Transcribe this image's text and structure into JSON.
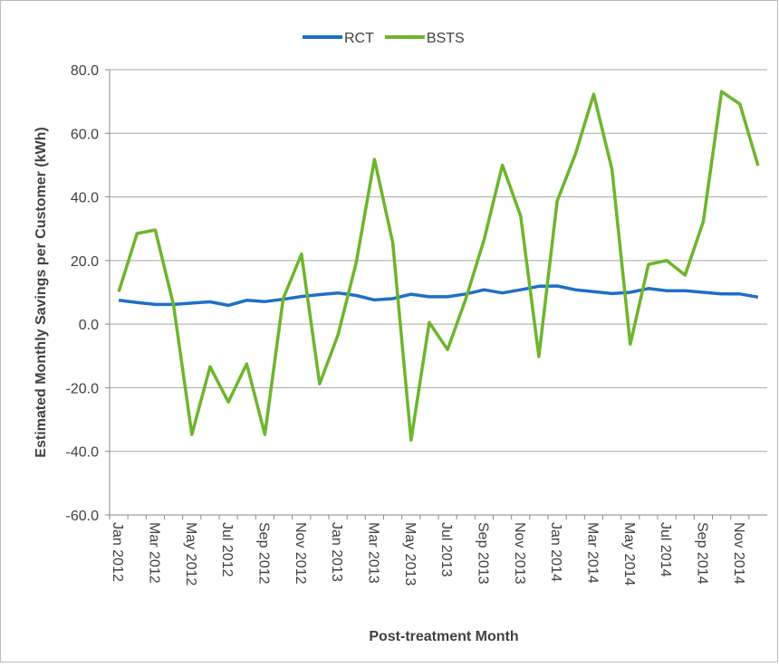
{
  "chart_data": {
    "type": "line",
    "y_label": "Estimated Monthly Savings per Customer (kWh)",
    "x_label": "Post-treatment Month",
    "categories": [
      "Jan 2012",
      null,
      "Mar 2012",
      null,
      "May 2012",
      null,
      "Jul 2012",
      null,
      "Sep 2012",
      null,
      "Nov 2012",
      null,
      "Jan 2013",
      null,
      "Mar 2013",
      null,
      "May 2013",
      null,
      "Jul 2013",
      null,
      "Sep 2013",
      null,
      "Nov 2013",
      null,
      "Jan 2014",
      null,
      "Mar 2014",
      null,
      "May 2014",
      null,
      "Jul 2014",
      null,
      "Sep 2014",
      null,
      "Nov 2014",
      null
    ],
    "series": [
      {
        "name": "RCT",
        "color": "#1f6fc5",
        "values": [
          7.5,
          6.8,
          6.2,
          6.2,
          6.6,
          7,
          5.9,
          7.5,
          7.1,
          7.8,
          8.7,
          9.3,
          9.8,
          9,
          7.6,
          8,
          9.4,
          8.6,
          8.6,
          9.5,
          10.8,
          9.8,
          10.8,
          11.9,
          12,
          10.8,
          10.2,
          9.6,
          10,
          11.2,
          10.5,
          10.5,
          10,
          9.5,
          9.5,
          8.5
        ]
      },
      {
        "name": "BSTS",
        "color": "#6cb52d",
        "values": [
          10.2,
          28.5,
          29.6,
          6,
          -34.7,
          -13.4,
          -24.5,
          -12.5,
          -34.7,
          8,
          22,
          -18.8,
          -3.4,
          19.4,
          51.8,
          25.6,
          -36.5,
          0.5,
          -8,
          8,
          26.5,
          50,
          34,
          -10.2,
          38.7,
          53.5,
          72.3,
          48.7,
          -6.3,
          18.8,
          20,
          15.4,
          32.2,
          73.1,
          69.2,
          49.8
        ]
      }
    ],
    "ylim": [
      -60,
      80
    ],
    "yticks": [
      {
        "value": -60,
        "label": "-60.0"
      },
      {
        "value": -40,
        "label": "-40.0"
      },
      {
        "value": -20,
        "label": "-20.0"
      },
      {
        "value": 0,
        "label": "0.0"
      },
      {
        "value": 20,
        "label": "20.0"
      },
      {
        "value": 40,
        "label": "40.0"
      },
      {
        "value": 60,
        "label": "60.0"
      },
      {
        "value": 80,
        "label": "80.0"
      }
    ],
    "grid": true,
    "legend": "top"
  }
}
